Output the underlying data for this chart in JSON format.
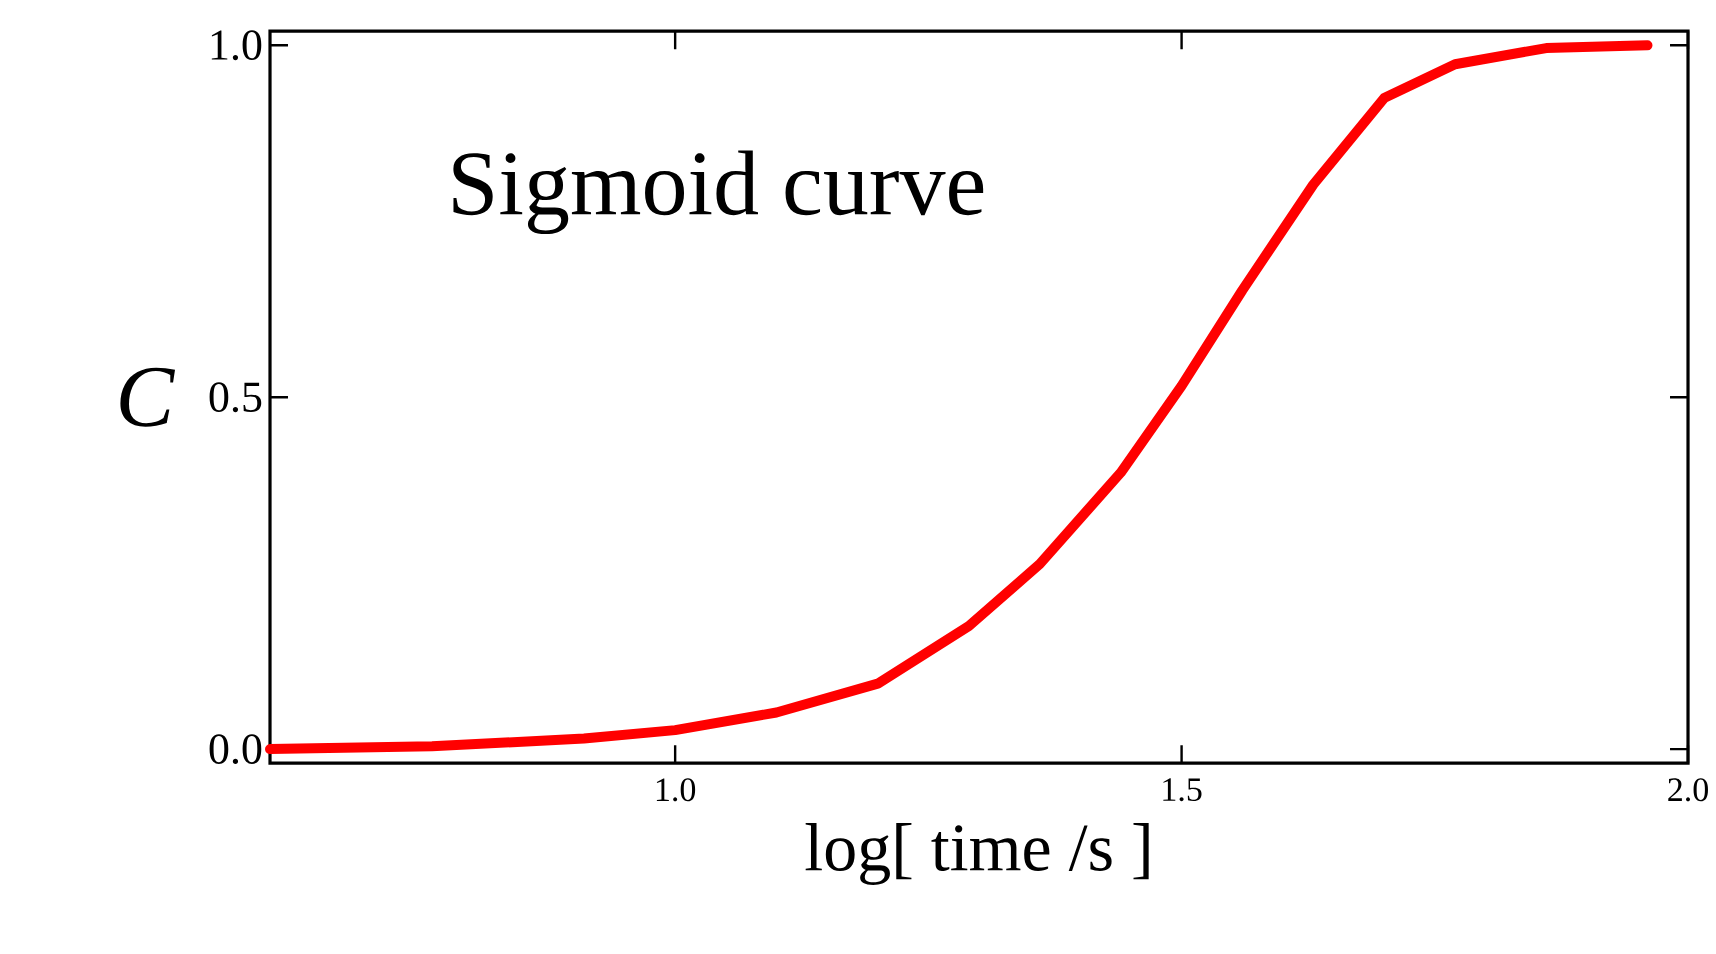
{
  "chart_data": {
    "type": "line",
    "xlabel": "log[ time /s ]",
    "ylabel": "C",
    "annotations": [
      {
        "text": "Sigmoid curve"
      }
    ],
    "x": [
      0.6,
      0.76,
      0.91,
      1.0,
      1.1,
      1.2,
      1.29,
      1.36,
      1.44,
      1.5,
      1.56,
      1.63,
      1.7,
      1.77,
      1.86,
      1.96
    ],
    "values": [
      0.0,
      0.004,
      0.015,
      0.027,
      0.052,
      0.093,
      0.175,
      0.263,
      0.393,
      0.516,
      0.652,
      0.802,
      0.925,
      0.973,
      0.996,
      1.0
    ],
    "color": "#ff0000",
    "line_style": "solid",
    "marker": "none",
    "grid": false,
    "xlim": [
      0.6,
      2.0
    ],
    "ylim": [
      -0.02,
      1.02
    ],
    "xticks": [
      {
        "value": 1.0,
        "label": "1.0"
      },
      {
        "value": 1.5,
        "label": "1.5"
      },
      {
        "value": 2.0,
        "label": "2.0"
      }
    ],
    "yticks": [
      {
        "value": 0.0,
        "label": "0.0"
      },
      {
        "value": 0.5,
        "label": "0.5"
      },
      {
        "value": 1.0,
        "label": "1.0"
      }
    ]
  }
}
